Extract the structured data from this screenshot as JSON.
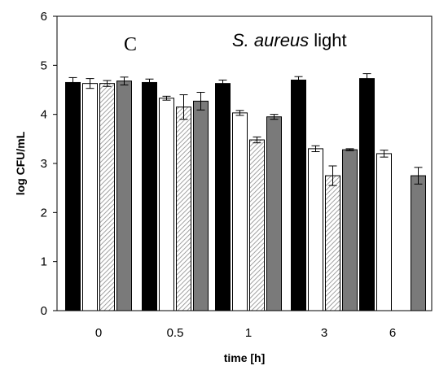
{
  "chart_data": {
    "type": "bar",
    "panel_letter": "C",
    "title_italic": "S. aureus",
    "title_rest": " light",
    "xlabel": "time [h]",
    "ylabel": "log CFU/mL",
    "categories": [
      "0",
      "0.5",
      "1",
      "3",
      "6"
    ],
    "ylim": [
      0,
      6
    ],
    "yticks": [
      "0",
      "1",
      "2",
      "3",
      "4",
      "5",
      "6"
    ],
    "grid": false,
    "series": [
      {
        "fill": "black",
        "values": [
          4.65,
          4.65,
          4.63,
          4.7,
          4.73
        ],
        "errors": [
          0.1,
          0.07,
          0.07,
          0.07,
          0.1
        ]
      },
      {
        "fill": "white",
        "values": [
          4.63,
          4.33,
          4.03,
          3.3,
          3.2
        ],
        "errors": [
          0.1,
          0.04,
          0.05,
          0.06,
          0.07
        ]
      },
      {
        "fill": "hatched",
        "values": [
          4.63,
          4.15,
          3.48,
          2.75,
          null
        ],
        "errors": [
          0.06,
          0.25,
          0.06,
          0.2,
          null
        ]
      },
      {
        "fill": "gray",
        "values": [
          4.68,
          4.27,
          3.95,
          3.28,
          2.75
        ],
        "errors": [
          0.08,
          0.18,
          0.05,
          0.02,
          0.17
        ]
      }
    ],
    "colors": {
      "black": "#000000",
      "white": "#ffffff",
      "gray": "#7a7a7a",
      "hatch": "#8a8a8a"
    }
  }
}
